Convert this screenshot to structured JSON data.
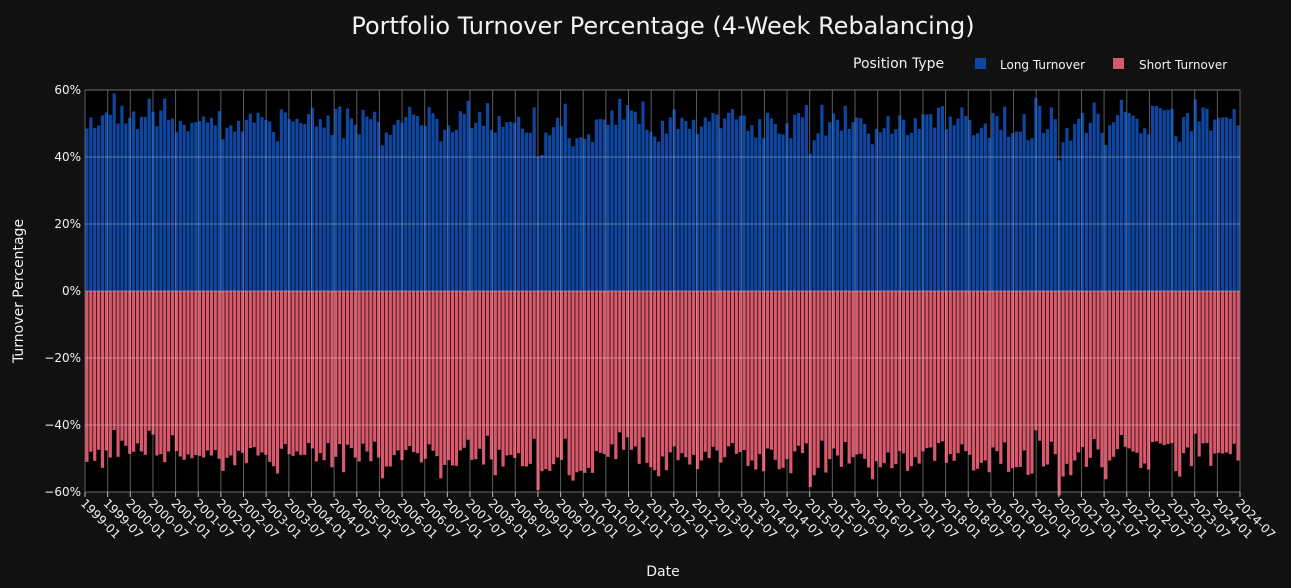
{
  "chart_data": {
    "type": "bar",
    "title": "Portfolio Turnover Percentage (4-Week Rebalancing)",
    "xlabel": "Date",
    "ylabel": "Turnover Percentage",
    "ylim": [
      -60,
      60
    ],
    "y_ticks": [
      "60%",
      "40%",
      "20%",
      "0%",
      "−20%",
      "−40%",
      "−60%"
    ],
    "y_tick_values": [
      60,
      40,
      20,
      0,
      -20,
      -40,
      -60
    ],
    "x_range": [
      "1999-01",
      "2024-07"
    ],
    "x_ticks": [
      "1999-01",
      "1999-07",
      "2000-01",
      "2000-07",
      "2001-01",
      "2001-07",
      "2002-01",
      "2002-07",
      "2003-01",
      "2003-07",
      "2004-01",
      "2004-07",
      "2005-01",
      "2005-07",
      "2006-01",
      "2006-07",
      "2007-01",
      "2007-07",
      "2008-01",
      "2008-07",
      "2009-01",
      "2009-07",
      "2010-01",
      "2010-07",
      "2011-01",
      "2011-07",
      "2012-01",
      "2012-07",
      "2013-01",
      "2013-07",
      "2014-01",
      "2014-07",
      "2015-01",
      "2015-07",
      "2016-01",
      "2016-07",
      "2017-01",
      "2017-07",
      "2018-01",
      "2018-07",
      "2019-01",
      "2019-07",
      "2020-01",
      "2020-07",
      "2021-01",
      "2021-07",
      "2022-01",
      "2022-07",
      "2023-01",
      "2023-07",
      "2024-01",
      "2024-07"
    ],
    "barmode": "relative",
    "grid": true,
    "legend": {
      "title": "Position Type",
      "placement": "top-right",
      "orientation": "horizontal"
    },
    "bar_count_note": "Approximately 13 four-week rebalancing periods per year, 1999-01 through 2024-06",
    "series": [
      {
        "name": "Long Turnover",
        "color": "#0d47a1",
        "values_pct": [
          48.5,
          51.8,
          48.7,
          49.4,
          52.4,
          53.3,
          52.6,
          59,
          50,
          55.3,
          50,
          51.7,
          53.6,
          48.3,
          52,
          51.9,
          57.4,
          53.5,
          49.2,
          53.9,
          57.5,
          51,
          51.5,
          47.4,
          50.8,
          49.6,
          47.7,
          50.2,
          50.4,
          50.7,
          52.1,
          50.3,
          51.7,
          49.4,
          53.7,
          45.3,
          48.7,
          49.4,
          47.6,
          50.8,
          47.6,
          51.1,
          52.9,
          50.3,
          53.2,
          51.9,
          51.1,
          50.6,
          47.5,
          44.7,
          54.2,
          53.3,
          51.3,
          50.6,
          51.4,
          50.1,
          49.8,
          52.8,
          54.7,
          49.1,
          51.3,
          48.8,
          52.4,
          46.6,
          54.4,
          55.1,
          45.6,
          54.5,
          51.5,
          49.6,
          46.8,
          54.1,
          52.1,
          51.3,
          53.5,
          50.5,
          43.5,
          47.3,
          46.6,
          49.6,
          51.1,
          50.3,
          51.9,
          55,
          52.7,
          52.2,
          49.5,
          49.3,
          54.9,
          53,
          51.4,
          44.7,
          48.1,
          49.4,
          47.4,
          48.1,
          53.7,
          52.8,
          56.8,
          48.6,
          50.2,
          53.5,
          49.3,
          56.1,
          48.1,
          47.3,
          52.2,
          49,
          50.4,
          50.5,
          50.2,
          52,
          48.5,
          47.3,
          47.2,
          54.8,
          40,
          40.6,
          47.3,
          46.5,
          48.9,
          51.7,
          49.2,
          55.9,
          45.6,
          43.2,
          45.6,
          45.9,
          45.4,
          46.8,
          44.5,
          51.2,
          51.4,
          51.2,
          49.6,
          53.9,
          49.6,
          57.4,
          51.2,
          55.5,
          53.9,
          53.5,
          49.9,
          56.6,
          48.1,
          47.6,
          46.1,
          44.6,
          50.8,
          47,
          51.8,
          54.2,
          48.3,
          51.7,
          50.7,
          48.4,
          51.1,
          46.9,
          49.1,
          51.8,
          50.6,
          53.1,
          52.7,
          48.6,
          51.5,
          53.2,
          54.3,
          51.2,
          52.2,
          52.4,
          47.8,
          49.5,
          45.8,
          51.3,
          45.6,
          53.2,
          51.5,
          49.9,
          47,
          46.7,
          50,
          45.6,
          52.6,
          53.1,
          51.8,
          55.5,
          41,
          45,
          47.1,
          55.6,
          46.4,
          50.4,
          53,
          51.1,
          47.9,
          55.3,
          48.4,
          50.4,
          51.8,
          51.6,
          49.9,
          47,
          43.8,
          48.4,
          47.4,
          48.6,
          52.2,
          46.9,
          48.3,
          52.4,
          51.1,
          46.6,
          47.2,
          51.6,
          48.4,
          52.7,
          52.7,
          52.8,
          48.8,
          54.8,
          55.2,
          48.3,
          52.1,
          49.5,
          51.5,
          54.8,
          52.3,
          51,
          46.5,
          47.1,
          48.7,
          50,
          45.7,
          53.1,
          52.2,
          48.1,
          55,
          46,
          47.1,
          47.6,
          47.6,
          52.8,
          45,
          45.6,
          57.6,
          55.3,
          47.2,
          48.3,
          54.8,
          51.3,
          39,
          44.4,
          48.7,
          44.9,
          49.8,
          51.4,
          53.2,
          47.2,
          50.2,
          56.3,
          52.9,
          47.2,
          43.6,
          49.5,
          50.4,
          52.5,
          57.1,
          53.5,
          53.1,
          52.4,
          51.4,
          47.1,
          48.6,
          46.8,
          55.3,
          55.2,
          54.6,
          54,
          54.1,
          54.4,
          46.2,
          44.6,
          51.9,
          53.1,
          47.7,
          57.2,
          50.6,
          54.8,
          54.4,
          47.9,
          51.2,
          51.7,
          51.8,
          51.9,
          51.4,
          54.3,
          49.4
        ]
      },
      {
        "name": "Short Turnover",
        "color": "#d9596c",
        "values_pct": [
          -51,
          -48,
          -50.7,
          -47.4,
          -52.8,
          -47.6,
          -49.7,
          -41.5,
          -49.5,
          -44.7,
          -46.2,
          -48.6,
          -48,
          -45.5,
          -47.9,
          -48.9,
          -41.7,
          -42.9,
          -49.1,
          -48.7,
          -51.1,
          -47.9,
          -43.1,
          -47.8,
          -49.4,
          -50.4,
          -48.8,
          -49.9,
          -49,
          -49.2,
          -49.7,
          -47.6,
          -49.1,
          -47.5,
          -50.1,
          -53.7,
          -49.8,
          -49.1,
          -52,
          -47.7,
          -48.3,
          -51.4,
          -46.9,
          -46.6,
          -49.1,
          -48.2,
          -48.9,
          -51,
          -52.3,
          -54.5,
          -47.1,
          -45.7,
          -48.7,
          -49.2,
          -47.9,
          -49,
          -48.9,
          -45.4,
          -47,
          -50.9,
          -48.4,
          -50.5,
          -45.4,
          -52.6,
          -49.5,
          -45.7,
          -54.1,
          -45.9,
          -46.9,
          -49.7,
          -50.9,
          -45.6,
          -47.9,
          -50.8,
          -45,
          -49.7,
          -55.9,
          -52.4,
          -52.4,
          -49,
          -47.6,
          -50.5,
          -47.5,
          -46.3,
          -48.1,
          -48.4,
          -51.2,
          -50.1,
          -45.8,
          -47.7,
          -49.3,
          -55.9,
          -51.9,
          -50.5,
          -52.1,
          -52.2,
          -47.6,
          -46.8,
          -44.4,
          -50.4,
          -50.2,
          -47.1,
          -51.8,
          -43.2,
          -50.3,
          -55,
          -47.4,
          -52.4,
          -49.1,
          -48.9,
          -49.8,
          -48.4,
          -52.3,
          -52.4,
          -51.6,
          -44.1,
          -59.5,
          -53.8,
          -53.2,
          -53.7,
          -51.7,
          -49.7,
          -50.4,
          -44.1,
          -55,
          -56.6,
          -54.1,
          -53.7,
          -54.3,
          -52.8,
          -54.3,
          -47.8,
          -48.3,
          -48.7,
          -49.5,
          -45.8,
          -50.2,
          -42.2,
          -47.4,
          -43.7,
          -47.4,
          -46.4,
          -51.6,
          -43.7,
          -51.3,
          -52.6,
          -53.5,
          -55.3,
          -49.4,
          -53.5,
          -48.2,
          -46.4,
          -50.5,
          -48.4,
          -49.6,
          -51.8,
          -48.9,
          -53.2,
          -50.6,
          -48,
          -49.9,
          -46.5,
          -47.6,
          -51.2,
          -49.6,
          -46.4,
          -45.4,
          -48.6,
          -48.1,
          -47.5,
          -52.2,
          -50.6,
          -53.3,
          -48.7,
          -53.8,
          -47,
          -47.4,
          -50.4,
          -53.2,
          -52.8,
          -50.2,
          -54.4,
          -47.9,
          -46.2,
          -48.4,
          -45.5,
          -58.5,
          -55,
          -52.8,
          -44.7,
          -54.2,
          -50.2,
          -47,
          -49.1,
          -52.5,
          -45.1,
          -51.5,
          -49.6,
          -48.8,
          -48.6,
          -50.1,
          -52.7,
          -56.2,
          -50.8,
          -52.6,
          -51.4,
          -48.2,
          -52.9,
          -51.7,
          -47.8,
          -48.5,
          -53.7,
          -52.3,
          -49.6,
          -51.5,
          -47.9,
          -46.9,
          -46.7,
          -50.7,
          -45.4,
          -44.9,
          -51.3,
          -48.7,
          -50.7,
          -48.4,
          -45.8,
          -47.8,
          -48.9,
          -53.6,
          -53.1,
          -51.3,
          -50.6,
          -54.1,
          -46.7,
          -47.8,
          -51.6,
          -45.2,
          -54,
          -52.9,
          -52.6,
          -52.5,
          -47.6,
          -54.9,
          -54.5,
          -41.6,
          -44.7,
          -52.4,
          -51.8,
          -45,
          -48.7,
          -61,
          -55.4,
          -51.6,
          -55,
          -50.6,
          -48.2,
          -46.6,
          -52.5,
          -49.8,
          -44.2,
          -47.3,
          -52.6,
          -56.2,
          -50.6,
          -49.5,
          -47.2,
          -43,
          -46.5,
          -47,
          -47.9,
          -48.3,
          -52.8,
          -51.5,
          -53.3,
          -45.1,
          -44.9,
          -45.5,
          -46,
          -45.7,
          -45.4,
          -53.8,
          -55.4,
          -48.4,
          -46.7,
          -52.3,
          -42.6,
          -49.4,
          -45.5,
          -45.4,
          -52.2,
          -48.5,
          -48.3,
          -48.5,
          -48.2,
          -48.7,
          -45.6,
          -50.6
        ]
      }
    ]
  }
}
